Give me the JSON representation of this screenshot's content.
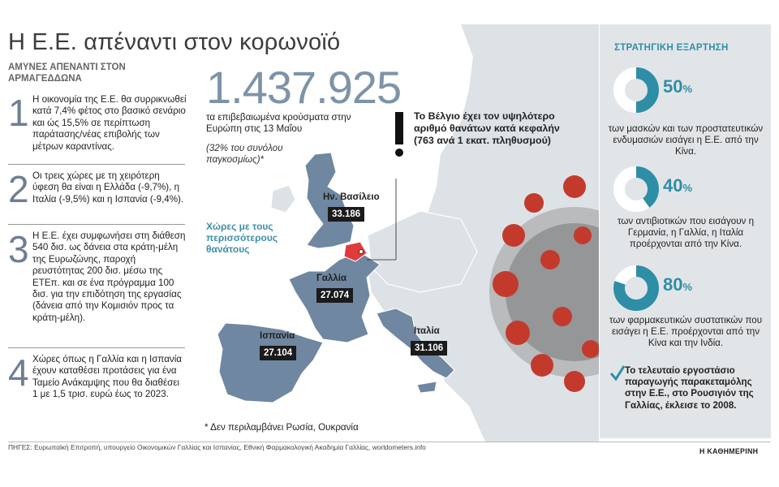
{
  "title": "Η Ε.Ε. απέναντι στον κορωνοϊό",
  "left": {
    "heading": "ΑΜΥΝΕΣ ΑΠΕΝΑΝΤΙ ΣΤΟΝ ΑΡΜΑΓΕΔΔΩΝΑ",
    "items": [
      {
        "num": "1",
        "text": "Η οικονομία της Ε.Ε. θα συρρικνωθεί κατά 7,4% φέτος στο βασικό σενάριο και ώς 15,5% σε περίπτωση παράτασης/νέας επιβολής των μέτρων καραντίνας."
      },
      {
        "num": "2",
        "text": "Οι τρεις χώρες με τη χειρότερη ύφεση θα είναι η Ελλάδα (-9,7%), η Ιταλία (-9,5%) και η Ισπανία (-9,4%)."
      },
      {
        "num": "3",
        "text": "Η Ε.Ε. έχει συμφωνήσει στη διάθεση 540 δισ. ως δάνεια στα κράτη-μέλη της Ευρωζώνης, παροχή ρευστότητας 200 δισ. μέσω της ΕΤΕπ. και σε ένα πρόγραμμα 100 δισ. για την επιδότηση της εργασίας (δάνεια από την Κομισιόν προς τα κράτη-μέλη)."
      },
      {
        "num": "4",
        "text": "Χώρες όπως η Γαλλία και η Ισπανία έχουν καταθέσει προτάσεις για ένα Ταμείο Ανάκαμψης που θα διαθέσει 1 με 1,5 τρισ. ευρώ έως το 2023."
      }
    ]
  },
  "center": {
    "big_number": "1.437.925",
    "big_desc": "τα επιβεβαιωμένα κρούσματα στην Ευρώπη στις 13 Μαΐου",
    "big_note": "(32% του συνόλου παγκοσμίως)*",
    "most_deaths_label": "Χώρες με τους περισσότερους θανάτους",
    "belgium_note": "Το Βέλγιο έχει τον υψηλότερο αριθμό θανάτων κατά κεφαλήν (763 ανά 1 εκατ. πληθυσμού)",
    "countries": [
      {
        "name": "Ην. Βασίλειο",
        "deaths": "33.186"
      },
      {
        "name": "Γαλλία",
        "deaths": "27.074"
      },
      {
        "name": "Ισπανία",
        "deaths": "27.104"
      },
      {
        "name": "Ιταλία",
        "deaths": "31.106"
      }
    ],
    "footnote": "* Δεν περιλαμβάνει Ρωσία, Ουκρανία"
  },
  "panel": {
    "title": "ΣΤΡΑΤΗΓΙΚΗ ΕΞΑΡΤΗΣΗ",
    "stats": [
      {
        "value": 50,
        "pct_num": "50",
        "pct_sign": "%",
        "desc": "των μασκών και των προστατευτικών ενδυμασιών εισάγει η Ε.Ε. από την Κίνα."
      },
      {
        "value": 40,
        "pct_num": "40",
        "pct_sign": "%",
        "desc": "των αντιβιοτικών που εισάγουν η Γερμανία, η Γαλλία, η Ιταλία προέρχονται από την Κίνα."
      },
      {
        "value": 80,
        "pct_num": "80",
        "pct_sign": "%",
        "desc": "των φαρμακευτικών συστατικών που εισάγει η Ε.Ε. προέρχονται από την Κίνα και την Ινδία."
      }
    ],
    "note": "Το τελευταίο εργοστάσιο παραγωγής παρακεταμόλης στην Ε.Ε., στο Ρουσιγιόν της Γαλλίας, έκλεισε το 2008.",
    "check_icon": "check-icon"
  },
  "colors": {
    "accent": "#2e8ea6",
    "map_highlight": "#6f87a0",
    "map_base": "#dde2e6",
    "belgium": "#e03a3a",
    "virus": "#c33a2c"
  },
  "sources": "ΠΗΓΕΣ: Ευρωπαϊκή Επιτροπή, υπουργείο Οικονομικών Γαλλίας και Ισπανίας, Εθνική Φαρμακολογική Ακαδημία Γαλλίας, worldometers.info",
  "logo": "Η ΚΑΘΗΜΕΡΙΝΗ"
}
